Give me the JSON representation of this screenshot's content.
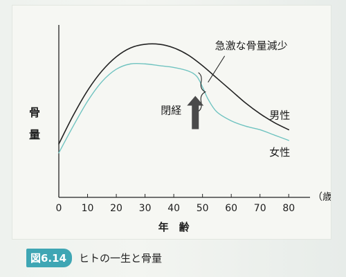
{
  "figure": {
    "number": "図6.14",
    "title": "ヒトの一生と骨量"
  },
  "chart_data": {
    "type": "line",
    "xlabel": "年　齢",
    "x_unit": "（歳）",
    "ylabel": "骨量",
    "xlim": [
      0,
      85
    ],
    "ylim": [
      0,
      100
    ],
    "x_ticks": [
      0,
      10,
      20,
      30,
      40,
      50,
      60,
      70,
      80
    ],
    "grid": false,
    "series": [
      {
        "name": "男性",
        "color": "#222222",
        "x": [
          0,
          5,
          10,
          15,
          20,
          25,
          30,
          35,
          40,
          45,
          50,
          55,
          60,
          65,
          70,
          75,
          80
        ],
        "values": [
          30,
          46,
          60,
          71,
          79,
          84,
          86,
          86,
          84,
          80,
          74,
          67,
          60,
          53,
          47,
          42,
          38
        ]
      },
      {
        "name": "女性",
        "color": "#6fc3c0",
        "x": [
          0,
          5,
          10,
          15,
          20,
          25,
          30,
          35,
          40,
          45,
          48,
          50,
          52,
          55,
          60,
          65,
          70,
          75,
          80
        ],
        "values": [
          25,
          40,
          54,
          65,
          72,
          75,
          75,
          74,
          73,
          71,
          68,
          62,
          55,
          48,
          43,
          40,
          38,
          35,
          32
        ]
      }
    ],
    "annotations": [
      {
        "text": "急激な骨量減少",
        "x": 50,
        "y": 60
      },
      {
        "text": "閉経",
        "x": 50,
        "y": 50
      }
    ]
  }
}
